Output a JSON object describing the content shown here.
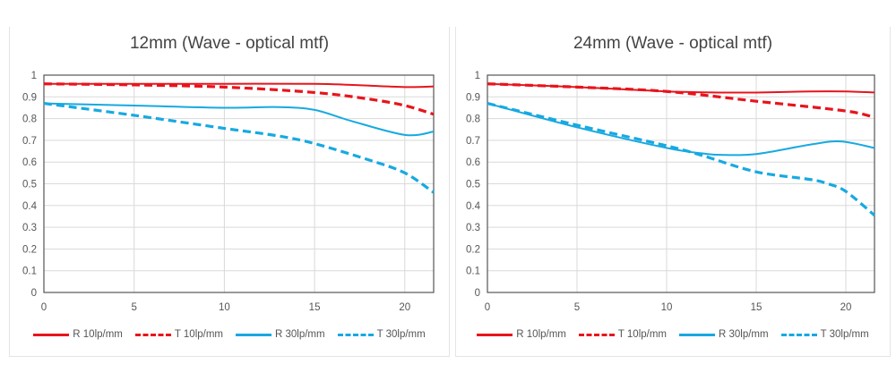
{
  "colors": {
    "red": "#e8141c",
    "blue": "#17a9e1"
  },
  "chart_data": [
    {
      "type": "line",
      "title": "12mm  (Wave - optical mtf)",
      "xlim": [
        0,
        21.6
      ],
      "ylim": [
        0,
        1
      ],
      "xticks": [
        "0",
        "5",
        "10",
        "15",
        "20"
      ],
      "yticks": [
        "0",
        "0.1",
        "0.2",
        "0.3",
        "0.4",
        "0.5",
        "0.6",
        "0.7",
        "0.8",
        "0.9",
        "1"
      ],
      "grid": true,
      "legend": "bottom",
      "series": [
        {
          "name": "R 10lp/mm",
          "color": "red",
          "dash": false,
          "x": [
            0,
            5,
            10,
            15,
            17,
            20,
            21.6
          ],
          "y": [
            0.96,
            0.96,
            0.96,
            0.96,
            0.955,
            0.945,
            0.948
          ]
        },
        {
          "name": "T 10lp/mm",
          "color": "red",
          "dash": true,
          "x": [
            0,
            5,
            10,
            15,
            18,
            20,
            21.6
          ],
          "y": [
            0.96,
            0.955,
            0.945,
            0.92,
            0.89,
            0.86,
            0.82
          ]
        },
        {
          "name": "R 30lp/mm",
          "color": "blue",
          "dash": false,
          "x": [
            0,
            5,
            10,
            13,
            15,
            17,
            20,
            21.6
          ],
          "y": [
            0.87,
            0.86,
            0.85,
            0.853,
            0.84,
            0.79,
            0.725,
            0.74
          ]
        },
        {
          "name": "T 30lp/mm",
          "color": "blue",
          "dash": true,
          "x": [
            0,
            5,
            10,
            13,
            15,
            18,
            20,
            21.6
          ],
          "y": [
            0.87,
            0.815,
            0.755,
            0.72,
            0.685,
            0.61,
            0.55,
            0.46
          ]
        }
      ]
    },
    {
      "type": "line",
      "title": "24mm  (Wave - optical mtf)",
      "xlim": [
        0,
        21.6
      ],
      "ylim": [
        0,
        1
      ],
      "xticks": [
        "0",
        "5",
        "10",
        "15",
        "20"
      ],
      "yticks": [
        "0",
        "0.1",
        "0.2",
        "0.3",
        "0.4",
        "0.5",
        "0.6",
        "0.7",
        "0.8",
        "0.9",
        "1"
      ],
      "grid": true,
      "legend": "bottom",
      "series": [
        {
          "name": "R 10lp/mm",
          "color": "red",
          "dash": false,
          "x": [
            0,
            5,
            10,
            13,
            15,
            18,
            20,
            21.6
          ],
          "y": [
            0.96,
            0.945,
            0.925,
            0.92,
            0.92,
            0.925,
            0.925,
            0.92
          ]
        },
        {
          "name": "T 10lp/mm",
          "color": "red",
          "dash": true,
          "x": [
            0,
            5,
            10,
            15,
            20,
            21.6
          ],
          "y": [
            0.96,
            0.945,
            0.925,
            0.88,
            0.835,
            0.805
          ]
        },
        {
          "name": "R 30lp/mm",
          "color": "blue",
          "dash": false,
          "x": [
            0,
            5,
            10,
            12,
            13,
            15,
            18,
            19.7,
            21.6
          ],
          "y": [
            0.87,
            0.76,
            0.665,
            0.64,
            0.633,
            0.637,
            0.68,
            0.695,
            0.665
          ]
        },
        {
          "name": "T 30lp/mm",
          "color": "blue",
          "dash": true,
          "x": [
            0,
            5,
            10,
            12,
            15,
            18,
            19,
            20,
            21.6
          ],
          "y": [
            0.87,
            0.77,
            0.675,
            0.63,
            0.555,
            0.52,
            0.5,
            0.465,
            0.355
          ]
        }
      ]
    }
  ]
}
